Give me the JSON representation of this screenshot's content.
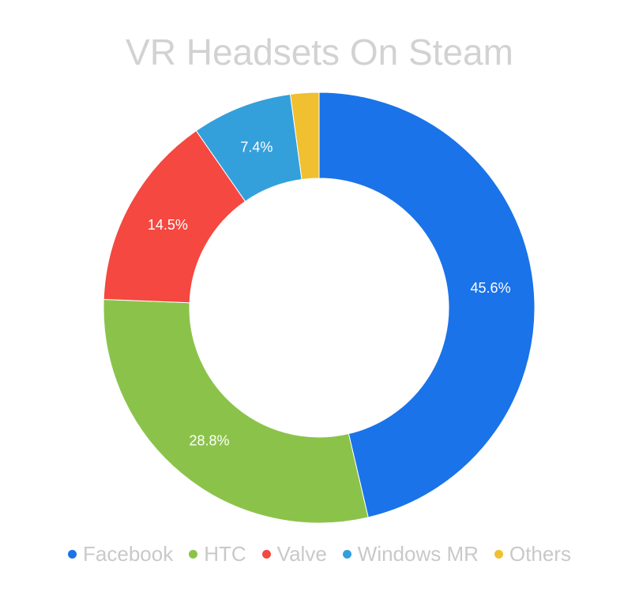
{
  "chart_data": {
    "type": "pie",
    "variant": "donut",
    "title": "VR Headsets On Steam",
    "legend_position": "bottom",
    "slices": [
      {
        "label": "Facebook",
        "value": 45.6,
        "display": "45.6%",
        "color": "#1a73e8"
      },
      {
        "label": "HTC",
        "value": 28.8,
        "display": "28.8%",
        "color": "#8bc34a"
      },
      {
        "label": "Valve",
        "value": 14.5,
        "display": "14.5%",
        "color": "#f44840"
      },
      {
        "label": "Windows MR",
        "value": 7.4,
        "display": "7.4%",
        "color": "#34a0db"
      },
      {
        "label": "Others",
        "value": 2.1,
        "display": "",
        "color": "#f0c030"
      }
    ]
  }
}
